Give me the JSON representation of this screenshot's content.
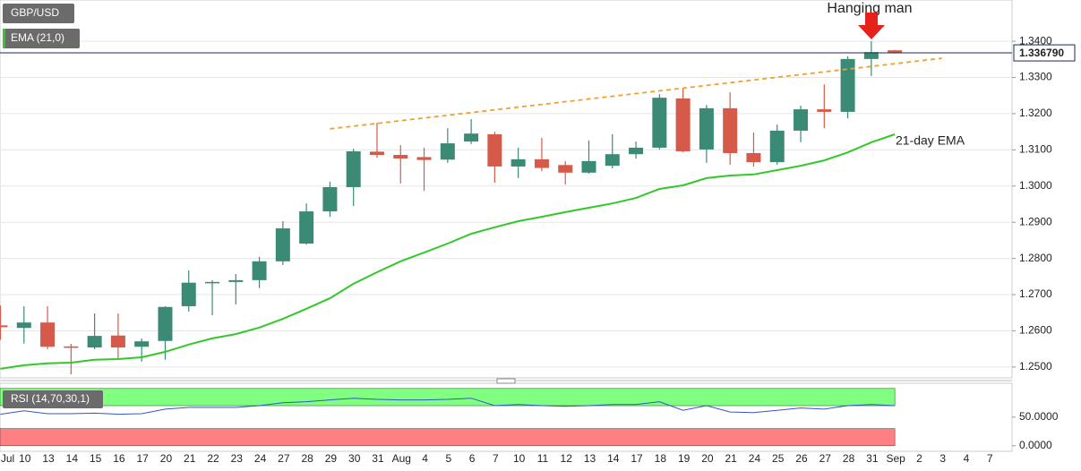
{
  "chart_data": [
    {
      "type": "candlestick",
      "title": "GBP/USD",
      "indicator_label": "EMA (21,0)",
      "categories": [
        "Jul",
        "10",
        "13",
        "14",
        "15",
        "16",
        "17",
        "20",
        "21",
        "22",
        "23",
        "24",
        "27",
        "28",
        "29",
        "30",
        "31",
        "Aug",
        "4",
        "5",
        "6",
        "7",
        "10",
        "11",
        "12",
        "13",
        "14",
        "17",
        "18",
        "19",
        "20",
        "21",
        "24",
        "25",
        "26",
        "27",
        "28",
        "31",
        "Sep",
        "2",
        "3",
        "4",
        "7"
      ],
      "open": [
        1.2615,
        1.2608,
        1.2623,
        1.2557,
        1.2554,
        1.2587,
        1.2556,
        1.2572,
        1.2668,
        1.2733,
        1.2735,
        1.274,
        1.2792,
        1.2841,
        1.293,
        1.2997,
        1.3095,
        1.3086,
        1.308,
        1.3073,
        1.3123,
        1.3143,
        1.3054,
        1.3074,
        1.3058,
        1.3037,
        1.3056,
        1.3088,
        1.3106,
        1.3242,
        1.3101,
        1.3215,
        1.3091,
        1.3066,
        1.3153,
        1.3212,
        1.3205,
        1.3351,
        1.3375,
        null,
        null,
        null,
        null
      ],
      "high": [
        1.267,
        1.2668,
        1.2668,
        1.2564,
        1.2648,
        1.2648,
        1.2579,
        1.2668,
        1.2767,
        1.274,
        1.2757,
        1.2804,
        1.2903,
        1.2952,
        1.3012,
        1.3103,
        1.3175,
        1.3113,
        1.3106,
        1.316,
        1.3185,
        1.315,
        1.3106,
        1.3133,
        1.3069,
        1.3126,
        1.3143,
        1.3123,
        1.3254,
        1.3271,
        1.3224,
        1.3259,
        1.3148,
        1.317,
        1.3222,
        1.3281,
        1.3358,
        1.34,
        1.3376,
        null,
        null,
        null,
        null
      ],
      "low": [
        1.2575,
        1.2565,
        1.2549,
        1.248,
        1.2549,
        1.2525,
        1.2515,
        1.252,
        1.2653,
        1.2643,
        1.2673,
        1.2718,
        1.2782,
        1.2838,
        1.2915,
        1.2945,
        1.3078,
        1.3007,
        1.2987,
        1.3064,
        1.3116,
        1.3009,
        1.3022,
        1.3041,
        1.3004,
        1.3034,
        1.3049,
        1.3076,
        1.3101,
        1.3093,
        1.3064,
        1.3059,
        1.3054,
        1.3059,
        1.3121,
        1.316,
        1.3187,
        1.3304,
        1.3366,
        null,
        null,
        null,
        null
      ],
      "close": [
        1.261,
        1.2623,
        1.2556,
        1.2553,
        1.2586,
        1.2554,
        1.2571,
        1.2666,
        1.2733,
        1.2735,
        1.274,
        1.2792,
        1.2883,
        1.293,
        1.2997,
        1.3096,
        1.3086,
        1.3076,
        1.3072,
        1.3118,
        1.3145,
        1.3054,
        1.3074,
        1.305,
        1.3037,
        1.3069,
        1.3088,
        1.3106,
        1.3244,
        1.3096,
        1.3215,
        1.3091,
        1.3066,
        1.3153,
        1.3212,
        1.3205,
        1.3351,
        1.337,
        1.33679,
        null,
        null,
        null,
        null
      ],
      "up_color": "#3b8a76",
      "down_color": "#d65a4a",
      "ylim": [
        1.247,
        1.3514
      ],
      "yticks": [
        {
          "value": 1.25,
          "label": "1.2500"
        },
        {
          "value": 1.26,
          "label": "1.2600"
        },
        {
          "value": 1.27,
          "label": "1.2700"
        },
        {
          "value": 1.28,
          "label": "1.2800"
        },
        {
          "value": 1.29,
          "label": "1.2900"
        },
        {
          "value": 1.3,
          "label": "1.3000"
        },
        {
          "value": 1.31,
          "label": "1.3100"
        },
        {
          "value": 1.32,
          "label": "1.3200"
        },
        {
          "value": 1.33,
          "label": "1.3300"
        },
        {
          "value": 1.34,
          "label": "1.3400"
        }
      ],
      "grid": true,
      "current_price": 1.33679,
      "current_price_label": "1.336790",
      "ema": {
        "color": "#33c82a",
        "values": [
          1.2495,
          1.2505,
          1.251,
          1.2512,
          1.252,
          1.2522,
          1.2527,
          1.2542,
          1.2562,
          1.2579,
          1.2591,
          1.2609,
          1.2633,
          1.2661,
          1.269,
          1.273,
          1.2762,
          1.2792,
          1.2816,
          1.2841,
          1.2868,
          1.2886,
          1.2903,
          1.2915,
          1.2928,
          1.294,
          1.2952,
          1.2967,
          1.2992,
          1.3002,
          1.3022,
          1.3029,
          1.3032,
          1.3044,
          1.3056,
          1.3071,
          1.3093,
          1.3121,
          1.3143,
          null,
          null,
          null,
          null
        ]
      },
      "trendline": {
        "color": "#f0a030",
        "x": [
          14,
          40
        ],
        "values": [
          1.3158,
          1.3353
        ]
      },
      "annotations": [
        {
          "text": "Hanging man",
          "color": "#e8201a"
        },
        {
          "text": "21-day EMA",
          "color": "#2fc02a"
        }
      ]
    },
    {
      "type": "line",
      "title": "RSI (14,70,30,1)",
      "color": "#3355cc",
      "values": [
        55,
        61,
        56,
        56,
        57,
        55,
        56,
        64,
        67,
        67,
        67,
        70,
        75,
        77,
        80,
        83,
        81,
        80,
        80,
        81,
        83,
        70,
        72,
        70,
        69,
        70,
        72,
        72,
        77,
        62,
        70,
        59,
        58,
        62,
        66,
        64,
        70,
        72,
        70,
        null,
        null,
        null,
        null
      ],
      "ylim": [
        -9,
        106
      ],
      "yticks": [
        {
          "value": 50,
          "label": "50.0000"
        },
        {
          "value": 0,
          "label": "0.0000"
        }
      ],
      "bands": [
        {
          "from": 70,
          "to": 100,
          "color": "#80ff80"
        },
        {
          "from": 0,
          "to": 30,
          "color": "#ff8080"
        }
      ]
    }
  ]
}
